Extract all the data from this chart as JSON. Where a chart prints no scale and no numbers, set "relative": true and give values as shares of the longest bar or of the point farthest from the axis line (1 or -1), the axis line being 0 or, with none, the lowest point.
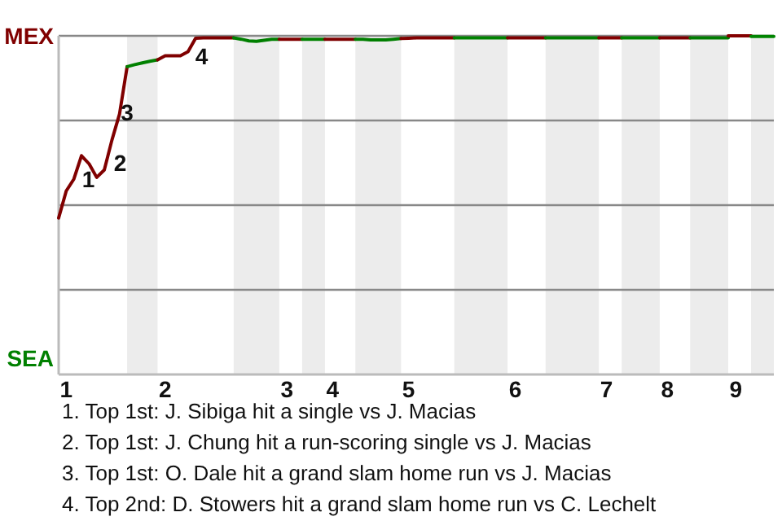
{
  "chart_data": {
    "type": "line",
    "relative": true,
    "categories": [
      null,
      "1",
      null,
      null,
      null,
      null,
      null,
      null,
      null,
      null,
      null,
      null,
      null,
      null,
      "2",
      null,
      null,
      null,
      null,
      null,
      null,
      null,
      null,
      null,
      null,
      null,
      null,
      null,
      null,
      null,
      "3",
      null,
      null,
      null,
      null,
      null,
      "4",
      null,
      null,
      null,
      null,
      null,
      null,
      null,
      null,
      null,
      "5",
      null,
      null,
      null,
      null,
      null,
      null,
      null,
      null,
      null,
      null,
      null,
      null,
      null,
      "6",
      null,
      null,
      null,
      null,
      null,
      null,
      null,
      null,
      null,
      null,
      null,
      "7",
      null,
      null,
      null,
      null,
      null,
      null,
      null,
      "8",
      null,
      null,
      null,
      null,
      null,
      null,
      null,
      null,
      "9",
      null,
      null,
      null,
      null,
      null
    ],
    "grid": "y",
    "marker": "none",
    "line_style": "solid",
    "series": [
      {
        "color": "#800000",
        "values": [
          0.462,
          0.542,
          0.577,
          0.646,
          0.622,
          0.582,
          0.604,
          0.692,
          0.769,
          0.909,
          null,
          null,
          null,
          null,
          null,
          null,
          null,
          null,
          null,
          null,
          null,
          null,
          null,
          null,
          null,
          null,
          null,
          null,
          null,
          null,
          null,
          null,
          null,
          null,
          null,
          null,
          null,
          null,
          null,
          null,
          null,
          null,
          null,
          null,
          null,
          null,
          null,
          null,
          null,
          null,
          null,
          null,
          null,
          null,
          null,
          null,
          null,
          null,
          null,
          null,
          null,
          null,
          null,
          null,
          null,
          null,
          null,
          null,
          null,
          null,
          null,
          null,
          null,
          null,
          null,
          null,
          null,
          null,
          null,
          null,
          null,
          null,
          null,
          null,
          null,
          null,
          null,
          null,
          null,
          null,
          null,
          null,
          null,
          null,
          null
        ]
      },
      {
        "color": "#008000",
        "values": [
          null,
          null,
          null,
          null,
          null,
          null,
          null,
          null,
          null,
          0.909,
          0.915,
          0.92,
          0.925,
          0.929,
          null,
          null,
          null,
          null,
          null,
          null,
          null,
          null,
          null,
          null,
          null,
          null,
          null,
          null,
          null,
          null,
          null,
          null,
          null,
          null,
          null,
          null,
          null,
          null,
          null,
          null,
          null,
          null,
          null,
          null,
          null,
          null,
          null,
          null,
          null,
          null,
          null,
          null,
          null,
          null,
          null,
          null,
          null,
          null,
          null,
          null,
          null,
          null,
          null,
          null,
          null,
          null,
          null,
          null,
          null,
          null,
          null,
          null,
          null,
          null,
          null,
          null,
          null,
          null,
          null,
          null,
          null,
          null,
          null,
          null,
          null,
          null,
          null,
          null,
          null,
          null,
          null,
          null,
          null,
          null,
          null
        ]
      },
      {
        "color": "#7f0000",
        "values": [
          null,
          null,
          null,
          null,
          null,
          null,
          null,
          null,
          null,
          null,
          null,
          null,
          null,
          0.929,
          0.941,
          0.941,
          0.941,
          0.953,
          0.993,
          0.994,
          0.994,
          0.994,
          0.994,
          0.994,
          null,
          null,
          null,
          null,
          null,
          null,
          null,
          null,
          null,
          null,
          null,
          null,
          null,
          null,
          null,
          null,
          null,
          null,
          null,
          null,
          null,
          null,
          null,
          null,
          null,
          null,
          null,
          null,
          null,
          null,
          null,
          null,
          null,
          null,
          null,
          null,
          null,
          null,
          null,
          null,
          null,
          null,
          null,
          null,
          null,
          null,
          null,
          null,
          null,
          null,
          null,
          null,
          null,
          null,
          null,
          null,
          null,
          null,
          null,
          null,
          null,
          null,
          null,
          null,
          null,
          null,
          null,
          null,
          null,
          null,
          null
        ]
      },
      {
        "color": "#007f00",
        "values": [
          null,
          null,
          null,
          null,
          null,
          null,
          null,
          null,
          null,
          null,
          null,
          null,
          null,
          null,
          null,
          null,
          null,
          null,
          null,
          null,
          null,
          null,
          null,
          0.994,
          0.99,
          0.985,
          0.984,
          0.987,
          0.99,
          0.99,
          null,
          null,
          null,
          null,
          null,
          null,
          null,
          null,
          null,
          null,
          null,
          null,
          null,
          null,
          null,
          null,
          null,
          null,
          null,
          null,
          null,
          null,
          null,
          null,
          null,
          null,
          null,
          null,
          null,
          null,
          null,
          null,
          null,
          null,
          null,
          null,
          null,
          null,
          null,
          null,
          null,
          null,
          null,
          null,
          null,
          null,
          null,
          null,
          null,
          null,
          null,
          null,
          null,
          null,
          null,
          null,
          null,
          null,
          null,
          null,
          null,
          null,
          null,
          null,
          null
        ]
      },
      {
        "color": "#810000",
        "values": [
          null,
          null,
          null,
          null,
          null,
          null,
          null,
          null,
          null,
          null,
          null,
          null,
          null,
          null,
          null,
          null,
          null,
          null,
          null,
          null,
          null,
          null,
          null,
          null,
          null,
          null,
          null,
          null,
          null,
          0.99,
          0.99,
          0.99,
          0.99,
          null,
          null,
          null,
          null,
          null,
          null,
          null,
          null,
          null,
          null,
          null,
          null,
          null,
          null,
          null,
          null,
          null,
          null,
          null,
          null,
          null,
          null,
          null,
          null,
          null,
          null,
          null,
          null,
          null,
          null,
          null,
          null,
          null,
          null,
          null,
          null,
          null,
          null,
          null,
          null,
          null,
          null,
          null,
          null,
          null,
          null,
          null,
          null,
          null,
          null,
          null,
          null,
          null,
          null,
          null,
          null,
          null,
          null,
          null,
          null,
          null,
          null
        ]
      },
      {
        "color": "#008100",
        "values": [
          null,
          null,
          null,
          null,
          null,
          null,
          null,
          null,
          null,
          null,
          null,
          null,
          null,
          null,
          null,
          null,
          null,
          null,
          null,
          null,
          null,
          null,
          null,
          null,
          null,
          null,
          null,
          null,
          null,
          null,
          null,
          null,
          0.99,
          0.99,
          0.99,
          0.99,
          null,
          null,
          null,
          null,
          null,
          null,
          null,
          null,
          null,
          null,
          null,
          null,
          null,
          null,
          null,
          null,
          null,
          null,
          null,
          null,
          null,
          null,
          null,
          null,
          null,
          null,
          null,
          null,
          null,
          null,
          null,
          null,
          null,
          null,
          null,
          null,
          null,
          null,
          null,
          null,
          null,
          null,
          null,
          null,
          null,
          null,
          null,
          null,
          null,
          null,
          null,
          null,
          null,
          null,
          null,
          null,
          null,
          null,
          null
        ]
      },
      {
        "color": "#7e0000",
        "values": [
          null,
          null,
          null,
          null,
          null,
          null,
          null,
          null,
          null,
          null,
          null,
          null,
          null,
          null,
          null,
          null,
          null,
          null,
          null,
          null,
          null,
          null,
          null,
          null,
          null,
          null,
          null,
          null,
          null,
          null,
          null,
          null,
          null,
          null,
          null,
          0.99,
          0.99,
          0.99,
          0.99,
          0.99,
          null,
          null,
          null,
          null,
          null,
          null,
          null,
          null,
          null,
          null,
          null,
          null,
          null,
          null,
          null,
          null,
          null,
          null,
          null,
          null,
          null,
          null,
          null,
          null,
          null,
          null,
          null,
          null,
          null,
          null,
          null,
          null,
          null,
          null,
          null,
          null,
          null,
          null,
          null,
          null,
          null,
          null,
          null,
          null,
          null,
          null,
          null,
          null,
          null,
          null,
          null,
          null,
          null,
          null,
          null
        ]
      },
      {
        "color": "#007e00",
        "values": [
          null,
          null,
          null,
          null,
          null,
          null,
          null,
          null,
          null,
          null,
          null,
          null,
          null,
          null,
          null,
          null,
          null,
          null,
          null,
          null,
          null,
          null,
          null,
          null,
          null,
          null,
          null,
          null,
          null,
          null,
          null,
          null,
          null,
          null,
          null,
          null,
          null,
          null,
          null,
          0.99,
          0.99,
          0.988,
          0.988,
          0.988,
          0.99,
          0.992,
          null,
          null,
          null,
          null,
          null,
          null,
          null,
          null,
          null,
          null,
          null,
          null,
          null,
          null,
          null,
          null,
          null,
          null,
          null,
          null,
          null,
          null,
          null,
          null,
          null,
          null,
          null,
          null,
          null,
          null,
          null,
          null,
          null,
          null,
          null,
          null,
          null,
          null,
          null,
          null,
          null,
          null,
          null,
          null,
          null,
          null,
          null,
          null,
          null
        ]
      },
      {
        "color": "#820000",
        "values": [
          null,
          null,
          null,
          null,
          null,
          null,
          null,
          null,
          null,
          null,
          null,
          null,
          null,
          null,
          null,
          null,
          null,
          null,
          null,
          null,
          null,
          null,
          null,
          null,
          null,
          null,
          null,
          null,
          null,
          null,
          null,
          null,
          null,
          null,
          null,
          null,
          null,
          null,
          null,
          null,
          null,
          null,
          null,
          null,
          null,
          0.992,
          0.993,
          0.994,
          0.994,
          0.994,
          0.994,
          0.994,
          0.994,
          null,
          null,
          null,
          null,
          null,
          null,
          null,
          null,
          null,
          null,
          null,
          null,
          null,
          null,
          null,
          null,
          null,
          null,
          null,
          null,
          null,
          null,
          null,
          null,
          null,
          null,
          null,
          null,
          null,
          null,
          null,
          null,
          null,
          null,
          null,
          null,
          null,
          null,
          null,
          null,
          null,
          null
        ]
      },
      {
        "color": "#008200",
        "values": [
          null,
          null,
          null,
          null,
          null,
          null,
          null,
          null,
          null,
          null,
          null,
          null,
          null,
          null,
          null,
          null,
          null,
          null,
          null,
          null,
          null,
          null,
          null,
          null,
          null,
          null,
          null,
          null,
          null,
          null,
          null,
          null,
          null,
          null,
          null,
          null,
          null,
          null,
          null,
          null,
          null,
          null,
          null,
          null,
          null,
          null,
          null,
          null,
          null,
          null,
          null,
          null,
          0.994,
          0.994,
          0.994,
          0.994,
          0.994,
          0.994,
          0.994,
          0.994,
          null,
          null,
          null,
          null,
          null,
          null,
          null,
          null,
          null,
          null,
          null,
          null,
          null,
          null,
          null,
          null,
          null,
          null,
          null,
          null,
          null,
          null,
          null,
          null,
          null,
          null,
          null,
          null,
          null,
          null,
          null,
          null,
          null,
          null,
          null
        ]
      },
      {
        "color": "#7d0000",
        "values": [
          null,
          null,
          null,
          null,
          null,
          null,
          null,
          null,
          null,
          null,
          null,
          null,
          null,
          null,
          null,
          null,
          null,
          null,
          null,
          null,
          null,
          null,
          null,
          null,
          null,
          null,
          null,
          null,
          null,
          null,
          null,
          null,
          null,
          null,
          null,
          null,
          null,
          null,
          null,
          null,
          null,
          null,
          null,
          null,
          null,
          null,
          null,
          null,
          null,
          null,
          null,
          null,
          null,
          null,
          null,
          null,
          null,
          null,
          null,
          0.994,
          0.994,
          0.994,
          0.994,
          0.994,
          0.994,
          null,
          null,
          null,
          null,
          null,
          null,
          null,
          null,
          null,
          null,
          null,
          null,
          null,
          null,
          null,
          null,
          null,
          null,
          null,
          null,
          null,
          null,
          null,
          null,
          null,
          null,
          null,
          null,
          null,
          null
        ]
      },
      {
        "color": "#007d00",
        "values": [
          null,
          null,
          null,
          null,
          null,
          null,
          null,
          null,
          null,
          null,
          null,
          null,
          null,
          null,
          null,
          null,
          null,
          null,
          null,
          null,
          null,
          null,
          null,
          null,
          null,
          null,
          null,
          null,
          null,
          null,
          null,
          null,
          null,
          null,
          null,
          null,
          null,
          null,
          null,
          null,
          null,
          null,
          null,
          null,
          null,
          null,
          null,
          null,
          null,
          null,
          null,
          null,
          null,
          null,
          null,
          null,
          null,
          null,
          null,
          null,
          null,
          null,
          null,
          null,
          0.994,
          0.994,
          0.994,
          0.994,
          0.994,
          0.994,
          0.994,
          0.994,
          null,
          null,
          null,
          null,
          null,
          null,
          null,
          null,
          null,
          null,
          null,
          null,
          null,
          null,
          null,
          null,
          null,
          null,
          null,
          null,
          null,
          null,
          null
        ]
      },
      {
        "color": "#830000",
        "values": [
          null,
          null,
          null,
          null,
          null,
          null,
          null,
          null,
          null,
          null,
          null,
          null,
          null,
          null,
          null,
          null,
          null,
          null,
          null,
          null,
          null,
          null,
          null,
          null,
          null,
          null,
          null,
          null,
          null,
          null,
          null,
          null,
          null,
          null,
          null,
          null,
          null,
          null,
          null,
          null,
          null,
          null,
          null,
          null,
          null,
          null,
          null,
          null,
          null,
          null,
          null,
          null,
          null,
          null,
          null,
          null,
          null,
          null,
          null,
          null,
          null,
          null,
          null,
          null,
          null,
          null,
          null,
          null,
          null,
          null,
          null,
          0.994,
          0.994,
          0.994,
          0.994,
          null,
          null,
          null,
          null,
          null,
          null,
          null,
          null,
          null,
          null,
          null,
          null,
          null,
          null,
          null,
          null,
          null,
          null,
          null,
          null
        ]
      },
      {
        "color": "#008300",
        "values": [
          null,
          null,
          null,
          null,
          null,
          null,
          null,
          null,
          null,
          null,
          null,
          null,
          null,
          null,
          null,
          null,
          null,
          null,
          null,
          null,
          null,
          null,
          null,
          null,
          null,
          null,
          null,
          null,
          null,
          null,
          null,
          null,
          null,
          null,
          null,
          null,
          null,
          null,
          null,
          null,
          null,
          null,
          null,
          null,
          null,
          null,
          null,
          null,
          null,
          null,
          null,
          null,
          null,
          null,
          null,
          null,
          null,
          null,
          null,
          null,
          null,
          null,
          null,
          null,
          null,
          null,
          null,
          null,
          null,
          null,
          null,
          null,
          null,
          null,
          0.994,
          0.994,
          0.994,
          0.994,
          0.994,
          0.994,
          null,
          null,
          null,
          null,
          null,
          null,
          null,
          null,
          null,
          null,
          null,
          null,
          null,
          null,
          null
        ]
      },
      {
        "color": "#7c0000",
        "values": [
          null,
          null,
          null,
          null,
          null,
          null,
          null,
          null,
          null,
          null,
          null,
          null,
          null,
          null,
          null,
          null,
          null,
          null,
          null,
          null,
          null,
          null,
          null,
          null,
          null,
          null,
          null,
          null,
          null,
          null,
          null,
          null,
          null,
          null,
          null,
          null,
          null,
          null,
          null,
          null,
          null,
          null,
          null,
          null,
          null,
          null,
          null,
          null,
          null,
          null,
          null,
          null,
          null,
          null,
          null,
          null,
          null,
          null,
          null,
          null,
          null,
          null,
          null,
          null,
          null,
          null,
          null,
          null,
          null,
          null,
          null,
          null,
          null,
          null,
          null,
          null,
          null,
          null,
          null,
          0.994,
          0.994,
          0.994,
          0.994,
          0.994,
          null,
          null,
          null,
          null,
          null,
          null,
          null,
          null,
          null,
          null,
          null
        ]
      },
      {
        "color": "#007c00",
        "values": [
          null,
          null,
          null,
          null,
          null,
          null,
          null,
          null,
          null,
          null,
          null,
          null,
          null,
          null,
          null,
          null,
          null,
          null,
          null,
          null,
          null,
          null,
          null,
          null,
          null,
          null,
          null,
          null,
          null,
          null,
          null,
          null,
          null,
          null,
          null,
          null,
          null,
          null,
          null,
          null,
          null,
          null,
          null,
          null,
          null,
          null,
          null,
          null,
          null,
          null,
          null,
          null,
          null,
          null,
          null,
          null,
          null,
          null,
          null,
          null,
          null,
          null,
          null,
          null,
          null,
          null,
          null,
          null,
          null,
          null,
          null,
          null,
          null,
          null,
          null,
          null,
          null,
          null,
          null,
          null,
          null,
          null,
          null,
          0.994,
          0.994,
          0.994,
          0.994,
          0.994,
          0.994,
          null,
          null,
          null,
          null,
          null,
          null
        ]
      },
      {
        "color": "#840000",
        "values": [
          null,
          null,
          null,
          null,
          null,
          null,
          null,
          null,
          null,
          null,
          null,
          null,
          null,
          null,
          null,
          null,
          null,
          null,
          null,
          null,
          null,
          null,
          null,
          null,
          null,
          null,
          null,
          null,
          null,
          null,
          null,
          null,
          null,
          null,
          null,
          null,
          null,
          null,
          null,
          null,
          null,
          null,
          null,
          null,
          null,
          null,
          null,
          null,
          null,
          null,
          null,
          null,
          null,
          null,
          null,
          null,
          null,
          null,
          null,
          null,
          null,
          null,
          null,
          null,
          null,
          null,
          null,
          null,
          null,
          null,
          null,
          null,
          null,
          null,
          null,
          null,
          null,
          null,
          null,
          null,
          null,
          null,
          null,
          null,
          null,
          null,
          null,
          null,
          1,
          1,
          1,
          1,
          null,
          null,
          null
        ]
      },
      {
        "color": "#008400",
        "values": [
          null,
          null,
          null,
          null,
          null,
          null,
          null,
          null,
          null,
          null,
          null,
          null,
          null,
          null,
          null,
          null,
          null,
          null,
          null,
          null,
          null,
          null,
          null,
          null,
          null,
          null,
          null,
          null,
          null,
          null,
          null,
          null,
          null,
          null,
          null,
          null,
          null,
          null,
          null,
          null,
          null,
          null,
          null,
          null,
          null,
          null,
          null,
          null,
          null,
          null,
          null,
          null,
          null,
          null,
          null,
          null,
          null,
          null,
          null,
          null,
          null,
          null,
          null,
          null,
          null,
          null,
          null,
          null,
          null,
          null,
          null,
          null,
          null,
          null,
          null,
          null,
          null,
          null,
          null,
          null,
          null,
          null,
          null,
          null,
          null,
          null,
          null,
          null,
          null,
          null,
          null,
          0.998,
          0.998,
          0.998,
          0.998
        ]
      }
    ],
    "annotations": [
      "MEX",
      "SEA",
      "1",
      "2",
      "3",
      "4",
      "1. Top 1st: J. Sibiga hit a single vs J. Macias",
      "2. Top 1st: J. Chung hit a run-scoring single vs J. Macias",
      "3. Top 1st: O. Dale hit a grand slam home run vs J. Macias",
      "4. Top 2nd: D. Stowers hit a grand slam home run vs C. Lechelt"
    ]
  }
}
